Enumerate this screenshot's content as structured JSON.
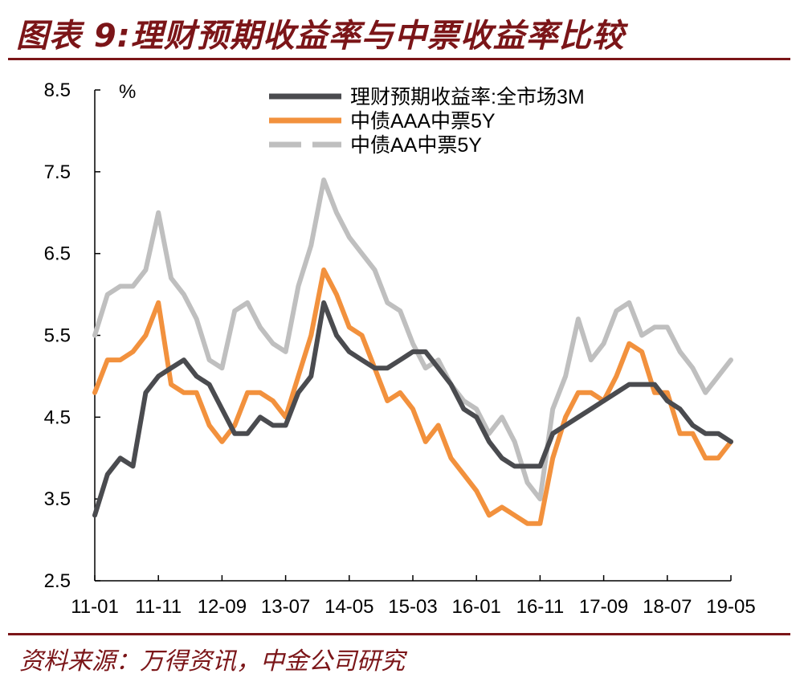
{
  "header": {
    "title": "图表 9:理财预期收益率与中票收益率比较"
  },
  "footer": {
    "source": "资料来源：万得资讯，中金公司研究"
  },
  "chart_data": {
    "type": "line",
    "ylabel": "%",
    "ylim": [
      2.5,
      8.5
    ],
    "y_ticks": [
      "2.5",
      "3.5",
      "4.5",
      "5.5",
      "6.5",
      "7.5",
      "8.5"
    ],
    "x_ticks": [
      "11-01",
      "11-11",
      "12-09",
      "13-07",
      "14-05",
      "15-03",
      "16-01",
      "16-11",
      "17-09",
      "18-07",
      "19-05"
    ],
    "x_range": [
      "2011-01",
      "2019-05"
    ],
    "grid": false,
    "legend": "top-right",
    "colors": {
      "wmp": "#4a4b4f",
      "aaa": "#f2913d",
      "aa": "#bfbfbf"
    },
    "series": [
      {
        "name": "理财预期收益率:全市场3M",
        "key": "wmp",
        "style": "solid",
        "points": [
          [
            "2011-01",
            3.3
          ],
          [
            "2011-03",
            3.8
          ],
          [
            "2011-05",
            4.0
          ],
          [
            "2011-07",
            3.9
          ],
          [
            "2011-09",
            4.8
          ],
          [
            "2011-11",
            5.0
          ],
          [
            "2012-01",
            5.1
          ],
          [
            "2012-03",
            5.2
          ],
          [
            "2012-05",
            5.0
          ],
          [
            "2012-07",
            4.9
          ],
          [
            "2012-09",
            4.6
          ],
          [
            "2012-11",
            4.3
          ],
          [
            "2013-01",
            4.3
          ],
          [
            "2013-03",
            4.5
          ],
          [
            "2013-05",
            4.4
          ],
          [
            "2013-07",
            4.4
          ],
          [
            "2013-09",
            4.8
          ],
          [
            "2013-11",
            5.0
          ],
          [
            "2014-01",
            5.9
          ],
          [
            "2014-03",
            5.5
          ],
          [
            "2014-05",
            5.3
          ],
          [
            "2014-07",
            5.2
          ],
          [
            "2014-09",
            5.1
          ],
          [
            "2014-11",
            5.1
          ],
          [
            "2015-01",
            5.2
          ],
          [
            "2015-03",
            5.3
          ],
          [
            "2015-05",
            5.3
          ],
          [
            "2015-07",
            5.1
          ],
          [
            "2015-09",
            4.9
          ],
          [
            "2015-11",
            4.6
          ],
          [
            "2016-01",
            4.5
          ],
          [
            "2016-03",
            4.2
          ],
          [
            "2016-05",
            4.0
          ],
          [
            "2016-07",
            3.9
          ],
          [
            "2016-09",
            3.9
          ],
          [
            "2016-11",
            3.9
          ],
          [
            "2017-01",
            4.3
          ],
          [
            "2017-03",
            4.4
          ],
          [
            "2017-05",
            4.5
          ],
          [
            "2017-07",
            4.6
          ],
          [
            "2017-09",
            4.7
          ],
          [
            "2017-11",
            4.8
          ],
          [
            "2018-01",
            4.9
          ],
          [
            "2018-03",
            4.9
          ],
          [
            "2018-05",
            4.9
          ],
          [
            "2018-07",
            4.7
          ],
          [
            "2018-09",
            4.6
          ],
          [
            "2018-11",
            4.4
          ],
          [
            "2019-01",
            4.3
          ],
          [
            "2019-03",
            4.3
          ],
          [
            "2019-05",
            4.2
          ]
        ]
      },
      {
        "name": "中债AAA中票5Y",
        "key": "aaa",
        "style": "solid",
        "points": [
          [
            "2011-01",
            4.8
          ],
          [
            "2011-03",
            5.2
          ],
          [
            "2011-05",
            5.2
          ],
          [
            "2011-07",
            5.3
          ],
          [
            "2011-09",
            5.5
          ],
          [
            "2011-11",
            5.9
          ],
          [
            "2012-01",
            4.9
          ],
          [
            "2012-03",
            4.8
          ],
          [
            "2012-05",
            4.8
          ],
          [
            "2012-07",
            4.4
          ],
          [
            "2012-09",
            4.2
          ],
          [
            "2012-11",
            4.4
          ],
          [
            "2013-01",
            4.8
          ],
          [
            "2013-03",
            4.8
          ],
          [
            "2013-05",
            4.7
          ],
          [
            "2013-07",
            4.5
          ],
          [
            "2013-09",
            5.0
          ],
          [
            "2013-11",
            5.5
          ],
          [
            "2014-01",
            6.3
          ],
          [
            "2014-03",
            6.0
          ],
          [
            "2014-05",
            5.6
          ],
          [
            "2014-07",
            5.5
          ],
          [
            "2014-09",
            5.1
          ],
          [
            "2014-11",
            4.7
          ],
          [
            "2015-01",
            4.8
          ],
          [
            "2015-03",
            4.6
          ],
          [
            "2015-05",
            4.2
          ],
          [
            "2015-07",
            4.4
          ],
          [
            "2015-09",
            4.0
          ],
          [
            "2015-11",
            3.8
          ],
          [
            "2016-01",
            3.6
          ],
          [
            "2016-03",
            3.3
          ],
          [
            "2016-05",
            3.4
          ],
          [
            "2016-07",
            3.3
          ],
          [
            "2016-09",
            3.2
          ],
          [
            "2016-11",
            3.2
          ],
          [
            "2017-01",
            4.0
          ],
          [
            "2017-03",
            4.5
          ],
          [
            "2017-05",
            4.8
          ],
          [
            "2017-07",
            4.8
          ],
          [
            "2017-09",
            4.7
          ],
          [
            "2017-11",
            5.0
          ],
          [
            "2018-01",
            5.4
          ],
          [
            "2018-03",
            5.3
          ],
          [
            "2018-05",
            4.8
          ],
          [
            "2018-07",
            4.8
          ],
          [
            "2018-09",
            4.3
          ],
          [
            "2018-11",
            4.3
          ],
          [
            "2019-01",
            4.0
          ],
          [
            "2019-03",
            4.0
          ],
          [
            "2019-05",
            4.2
          ]
        ]
      },
      {
        "name": "中债AA中票5Y",
        "key": "aa",
        "style": "dashed",
        "points": [
          [
            "2011-01",
            5.5
          ],
          [
            "2011-03",
            6.0
          ],
          [
            "2011-05",
            6.1
          ],
          [
            "2011-07",
            6.1
          ],
          [
            "2011-09",
            6.3
          ],
          [
            "2011-11",
            7.0
          ],
          [
            "2012-01",
            6.2
          ],
          [
            "2012-03",
            6.0
          ],
          [
            "2012-05",
            5.7
          ],
          [
            "2012-07",
            5.2
          ],
          [
            "2012-09",
            5.1
          ],
          [
            "2012-11",
            5.8
          ],
          [
            "2013-01",
            5.9
          ],
          [
            "2013-03",
            5.6
          ],
          [
            "2013-05",
            5.4
          ],
          [
            "2013-07",
            5.3
          ],
          [
            "2013-09",
            6.1
          ],
          [
            "2013-11",
            6.6
          ],
          [
            "2014-01",
            7.4
          ],
          [
            "2014-03",
            7.0
          ],
          [
            "2014-05",
            6.7
          ],
          [
            "2014-07",
            6.5
          ],
          [
            "2014-09",
            6.3
          ],
          [
            "2014-11",
            5.9
          ],
          [
            "2015-01",
            5.8
          ],
          [
            "2015-03",
            5.4
          ],
          [
            "2015-05",
            5.1
          ],
          [
            "2015-07",
            5.2
          ],
          [
            "2015-09",
            4.9
          ],
          [
            "2015-11",
            4.7
          ],
          [
            "2016-01",
            4.6
          ],
          [
            "2016-03",
            4.3
          ],
          [
            "2016-05",
            4.5
          ],
          [
            "2016-07",
            4.2
          ],
          [
            "2016-09",
            3.7
          ],
          [
            "2016-11",
            3.5
          ],
          [
            "2017-01",
            4.6
          ],
          [
            "2017-03",
            5.0
          ],
          [
            "2017-05",
            5.7
          ],
          [
            "2017-07",
            5.2
          ],
          [
            "2017-09",
            5.4
          ],
          [
            "2017-11",
            5.8
          ],
          [
            "2018-01",
            5.9
          ],
          [
            "2018-03",
            5.5
          ],
          [
            "2018-05",
            5.6
          ],
          [
            "2018-07",
            5.6
          ],
          [
            "2018-09",
            5.3
          ],
          [
            "2018-11",
            5.1
          ],
          [
            "2019-01",
            4.8
          ],
          [
            "2019-03",
            5.0
          ],
          [
            "2019-05",
            5.2
          ]
        ]
      }
    ]
  }
}
